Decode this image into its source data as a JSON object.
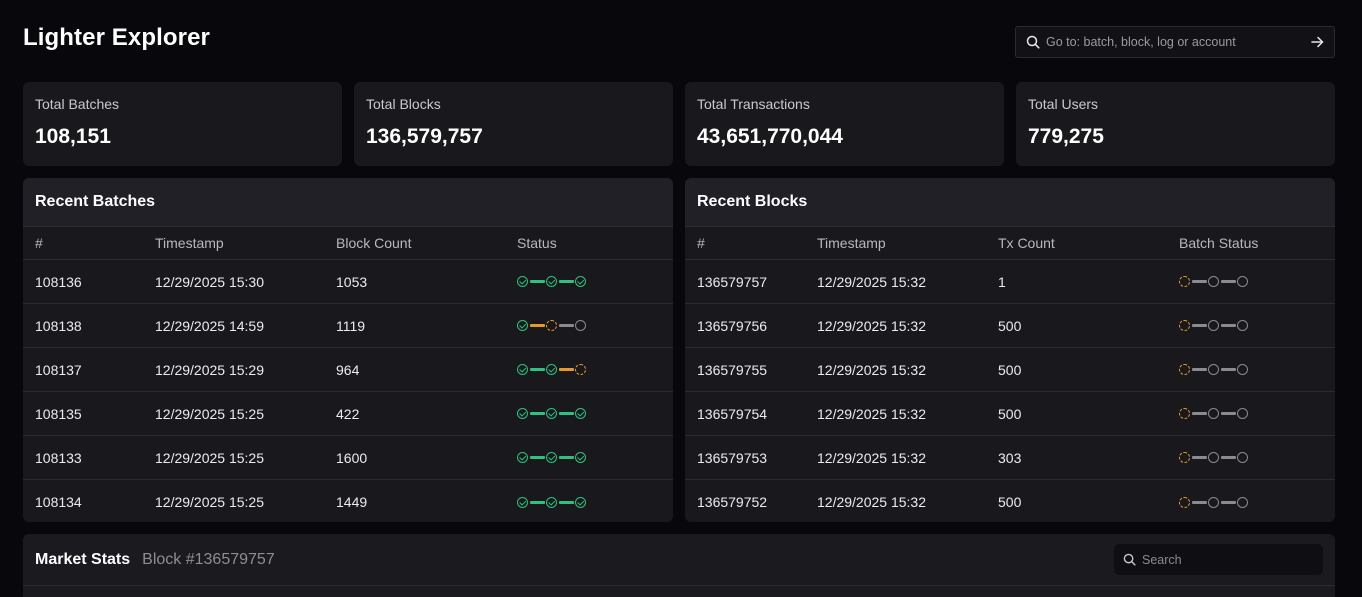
{
  "app": {
    "title": "Lighter Explorer"
  },
  "goto": {
    "placeholder": "Go to: batch, block, log or account"
  },
  "stats": [
    {
      "label": "Total Batches",
      "value": "108,151"
    },
    {
      "label": "Total Blocks",
      "value": "136,579,757"
    },
    {
      "label": "Total Transactions",
      "value": "43,651,770,044"
    },
    {
      "label": "Total Users",
      "value": "779,275"
    }
  ],
  "recent_batches": {
    "title": "Recent Batches",
    "columns": [
      "#",
      "Timestamp",
      "Block Count",
      "Status"
    ],
    "rows": [
      {
        "id": "108136",
        "timestamp": "12/29/2025 15:30",
        "count": "1053",
        "status": [
          "ok",
          "ok",
          "ok"
        ]
      },
      {
        "id": "108138",
        "timestamp": "12/29/2025 14:59",
        "count": "1119",
        "status": [
          "ok",
          "pend",
          "idle"
        ]
      },
      {
        "id": "108137",
        "timestamp": "12/29/2025 15:29",
        "count": "964",
        "status": [
          "ok",
          "ok",
          "pend"
        ]
      },
      {
        "id": "108135",
        "timestamp": "12/29/2025 15:25",
        "count": "422",
        "status": [
          "ok",
          "ok",
          "ok"
        ]
      },
      {
        "id": "108133",
        "timestamp": "12/29/2025 15:25",
        "count": "1600",
        "status": [
          "ok",
          "ok",
          "ok"
        ]
      },
      {
        "id": "108134",
        "timestamp": "12/29/2025 15:25",
        "count": "1449",
        "status": [
          "ok",
          "ok",
          "ok"
        ]
      }
    ]
  },
  "recent_blocks": {
    "title": "Recent Blocks",
    "columns": [
      "#",
      "Timestamp",
      "Tx Count",
      "Batch Status"
    ],
    "rows": [
      {
        "id": "136579757",
        "timestamp": "12/29/2025 15:32",
        "count": "1",
        "status": [
          "pend",
          "idle",
          "idle"
        ]
      },
      {
        "id": "136579756",
        "timestamp": "12/29/2025 15:32",
        "count": "500",
        "status": [
          "pend",
          "idle",
          "idle"
        ]
      },
      {
        "id": "136579755",
        "timestamp": "12/29/2025 15:32",
        "count": "500",
        "status": [
          "pend",
          "idle",
          "idle"
        ]
      },
      {
        "id": "136579754",
        "timestamp": "12/29/2025 15:32",
        "count": "500",
        "status": [
          "pend",
          "idle",
          "idle"
        ]
      },
      {
        "id": "136579753",
        "timestamp": "12/29/2025 15:32",
        "count": "303",
        "status": [
          "pend",
          "idle",
          "idle"
        ]
      },
      {
        "id": "136579752",
        "timestamp": "12/29/2025 15:32",
        "count": "500",
        "status": [
          "pend",
          "idle",
          "idle"
        ]
      }
    ]
  },
  "market_stats": {
    "title": "Market Stats",
    "subtitle": "Block #136579757",
    "search_placeholder": "Search"
  },
  "colors": {
    "accent_ok": "#2ec27e",
    "accent_pending": "#e59a2a",
    "idle": "#8a8a92",
    "background": "#07070c",
    "panel": "#18181d"
  },
  "icons": {
    "search": "search-icon",
    "arrow": "arrow-right-icon",
    "status_done": "check-circle-icon",
    "status_pending": "dashed-circle-icon",
    "status_idle": "empty-circle-icon"
  }
}
